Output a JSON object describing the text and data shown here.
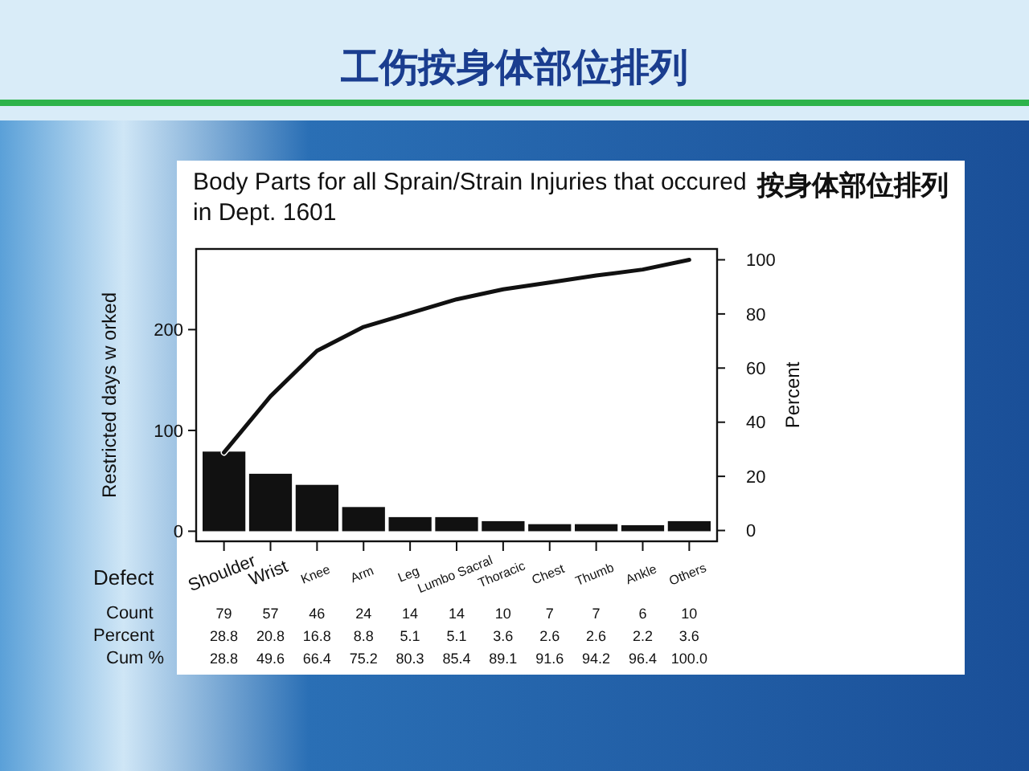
{
  "chart_data": {
    "type": "bar",
    "title": "Body Parts for all Sprain/Strain Injuries that occured in Dept. 1601",
    "subtitle": "工伤按身体部位排列",
    "xlabel": "Defect",
    "ylabel": "Restricted days w orked",
    "y2label": "Percent",
    "categories": [
      "Shoulder",
      "Wrist",
      "Knee",
      "Arm",
      "Leg",
      "Lumbo Sacral",
      "Thoracic",
      "Chest",
      "Thumb",
      "Ankle",
      "Others"
    ],
    "series": [
      {
        "color": "#111111",
        "values": [
          79,
          57,
          46,
          24,
          14,
          14,
          10,
          7,
          7,
          6,
          10
        ]
      },
      {
        "type": "line",
        "axis": "y2",
        "color": "#111111",
        "values": [
          28.8,
          49.6,
          66.4,
          75.2,
          80.3,
          85.4,
          89.1,
          91.6,
          94.2,
          96.4,
          100.0
        ],
        "value_labels": [
          "28.8",
          "49.6",
          "66.4",
          "75.2",
          "80.3",
          "85.4",
          "89.1",
          "91.6",
          "94.2",
          "96.4",
          "100.0"
        ]
      }
    ],
    "annotations": [
      "按身体部位排列",
      "Count",
      "Percent",
      "Cum %",
      "28.8",
      "20.8",
      "16.8",
      "8.8",
      "5.1",
      "5.1",
      "3.6",
      "2.6",
      "2.6",
      "2.2",
      "3.6"
    ],
    "ylim": [
      -10,
      280
    ],
    "yticks": [
      0,
      100,
      200
    ],
    "y2lim": [
      -4,
      104
    ],
    "y2ticks": [
      0,
      20,
      40,
      60,
      80,
      100
    ],
    "data_labels": true,
    "grid": false
  }
}
